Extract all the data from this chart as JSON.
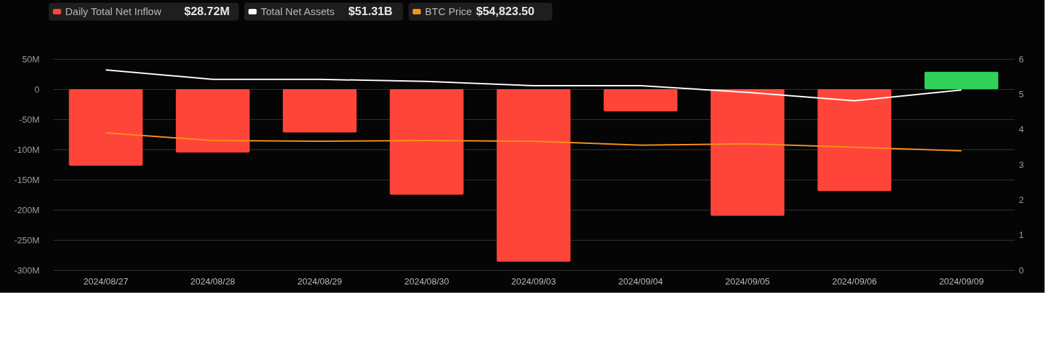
{
  "chart_data": {
    "type": "bar",
    "categories": [
      "2024/08/27",
      "2024/08/28",
      "2024/08/29",
      "2024/08/30",
      "2024/09/03",
      "2024/09/04",
      "2024/09/05",
      "2024/09/06",
      "2024/09/09"
    ],
    "series": [
      {
        "name": "Daily Total Net Inflow",
        "values": [
          -127,
          -105,
          -72,
          -175,
          -286,
          -37,
          -210,
          -169,
          28.72
        ],
        "colors": [
          "#ff4539",
          "#ff4539",
          "#ff4539",
          "#ff4539",
          "#ff4539",
          "#ff4539",
          "#ff4539",
          "#ff4539",
          "#30d158"
        ]
      },
      {
        "name": "Total Net Assets",
        "type": "line",
        "axis": "y2",
        "color": "#ffffff",
        "values": [
          5.69,
          5.42,
          5.42,
          5.36,
          5.24,
          5.24,
          5.05,
          4.81,
          5.12
        ]
      },
      {
        "name": "BTC Price",
        "type": "line",
        "axis": "y2",
        "color": "#f7931a",
        "values": [
          3.9,
          3.68,
          3.66,
          3.68,
          3.66,
          3.55,
          3.59,
          3.49,
          3.39
        ]
      }
    ],
    "annotations": [
      "$28.72M",
      "$51.31B",
      "$54,823.50"
    ],
    "ylim": [
      -300,
      50
    ],
    "yticks": [
      {
        "value": 50,
        "label": "50M"
      },
      0,
      {
        "value": -50,
        "label": "-50M"
      },
      {
        "value": -100,
        "label": "-100M"
      },
      {
        "value": -150,
        "label": "-150M"
      },
      {
        "value": -200,
        "label": "-200M"
      },
      {
        "value": -250,
        "label": "-250M"
      },
      {
        "value": -300,
        "label": "-300M"
      }
    ],
    "y2lim": [
      0,
      6
    ],
    "y2ticks": [
      0,
      1,
      2,
      3,
      4,
      5,
      6
    ],
    "grid": "y",
    "legend": "top left"
  }
}
